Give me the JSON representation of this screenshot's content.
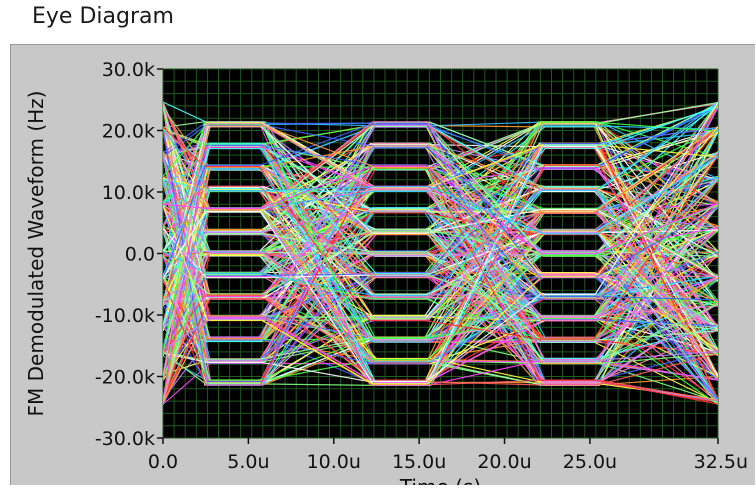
{
  "window": {
    "title": "Eye Diagram"
  },
  "chart_data": {
    "type": "line",
    "title": "Eye Diagram",
    "xlabel": "Time (s)",
    "ylabel": "FM Demodulated Waveform (Hz)",
    "xlim": [
      0,
      32.5
    ],
    "ylim": [
      -30000,
      30000
    ],
    "x_ticks": [
      {
        "value": 0,
        "label": "0.0"
      },
      {
        "value": 5,
        "label": "5.0u"
      },
      {
        "value": 10,
        "label": "10.0u"
      },
      {
        "value": 15,
        "label": "15.0u"
      },
      {
        "value": 20,
        "label": "20.0u"
      },
      {
        "value": 25,
        "label": "25.0u"
      },
      {
        "value": 32.5,
        "label": "32.5u"
      }
    ],
    "y_ticks": [
      {
        "value": 30000,
        "label": "30.0k"
      },
      {
        "value": 20000,
        "label": "20.0k"
      },
      {
        "value": 10000,
        "label": "10.0k"
      },
      {
        "value": 0,
        "label": "0.0"
      },
      {
        "value": -10000,
        "label": "-10.0k"
      },
      {
        "value": -20000,
        "label": "-20.0k"
      },
      {
        "value": -30000,
        "label": "-30.0k"
      }
    ],
    "grid": true,
    "plot_background": "#000000",
    "grid_color": "#1f5a1f",
    "eye_openings_x": [
      4.2,
      13.9,
      23.8
    ],
    "symbol_levels": [
      -21000,
      -17500,
      -14000,
      -10500,
      -7000,
      -3500,
      0,
      3500,
      7000,
      10500,
      14000,
      17500,
      21000
    ],
    "trace_colors": [
      "#ff3030",
      "#ffff40",
      "#40ff40",
      "#40ffff",
      "#4060ff",
      "#ff40ff",
      "#ffffff",
      "#ff9a30",
      "#ff80c0",
      "#80ff80",
      "#30c0ff",
      "#c080ff",
      "#ff6060",
      "#a0ffa0"
    ]
  }
}
